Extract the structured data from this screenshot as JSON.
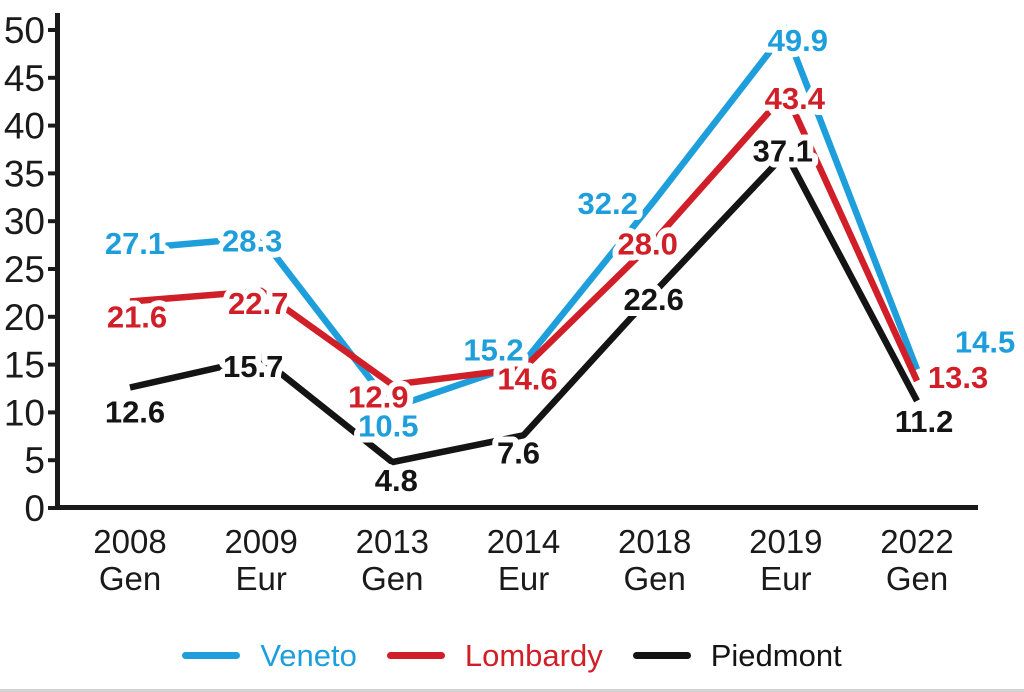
{
  "chart_data": {
    "type": "line",
    "title": "",
    "categories": [
      {
        "year": "2008",
        "group": "Gen"
      },
      {
        "year": "2009",
        "group": "Eur"
      },
      {
        "year": "2013",
        "group": "Gen"
      },
      {
        "year": "2014",
        "group": "Eur"
      },
      {
        "year": "2018",
        "group": "Gen"
      },
      {
        "year": "2019",
        "group": "Eur"
      },
      {
        "year": "2022",
        "group": "Gen"
      }
    ],
    "series": [
      {
        "name": "Veneto",
        "color": "#1E9FDC",
        "values": [
          27.1,
          28.3,
          10.5,
          15.2,
          32.2,
          49.9,
          14.5
        ],
        "label_offsets": [
          [
            5,
            -6
          ],
          [
            -9,
            3
          ],
          [
            -4,
            18
          ],
          [
            -30,
            -13
          ],
          [
            -47,
            3
          ],
          [
            12,
            9
          ],
          [
            68,
            -28
          ]
        ]
      },
      {
        "name": "Lombardy",
        "color": "#D01F28",
        "values": [
          21.6,
          22.7,
          12.9,
          14.6,
          28.0,
          43.4,
          13.3
        ],
        "label_offsets": [
          [
            7,
            15
          ],
          [
            -3,
            12
          ],
          [
            -14,
            12
          ],
          [
            4,
            10
          ],
          [
            -7,
            3
          ],
          [
            9,
            5
          ],
          [
            41,
            -4
          ]
        ]
      },
      {
        "name": "Piedmont",
        "color": "#141414",
        "values": [
          12.6,
          15.7,
          4.8,
          7.6,
          22.6,
          37.1,
          11.2
        ],
        "label_offsets": [
          [
            5,
            24
          ],
          [
            -8,
            8
          ],
          [
            4,
            18
          ],
          [
            -5,
            17
          ],
          [
            -1,
            7
          ],
          [
            -3,
            -3
          ],
          [
            7,
            20
          ]
        ]
      }
    ],
    "ylim": [
      0,
      50
    ],
    "ytick_step": 5,
    "ytick_labels": [
      "0",
      "5",
      "10",
      "15",
      "20",
      "25",
      "30",
      "35",
      "40",
      "45",
      "50"
    ],
    "grid": false,
    "legend_position": "bottom",
    "axis_color": "#1a1a1a"
  }
}
